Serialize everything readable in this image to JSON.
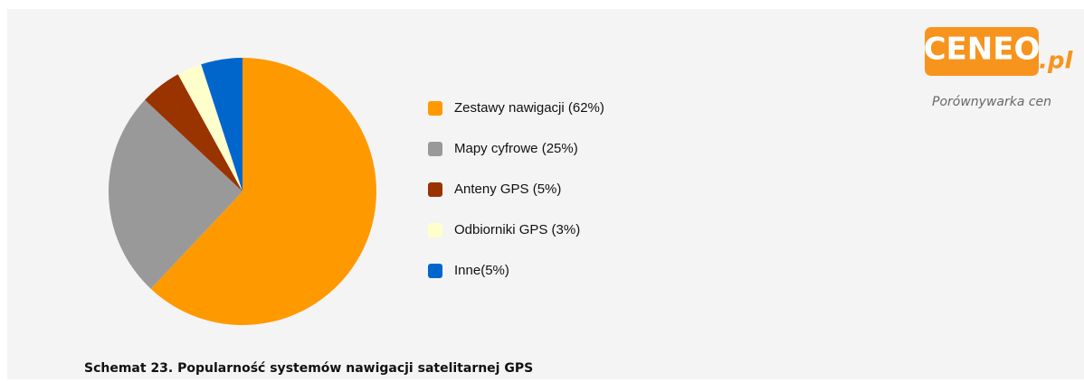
{
  "chart_data": {
    "type": "pie",
    "categories": [
      "Zestawy nawigacji (62%)",
      "Mapy cyfrowe (25%)",
      "Anteny GPS (5%)",
      "Odbiorniki GPS (3%)",
      "Inne(5%)"
    ],
    "values": [
      62,
      25,
      5,
      3,
      5
    ],
    "colors": [
      "#ff9900",
      "#999999",
      "#993300",
      "#ffffcc",
      "#0066cc"
    ],
    "caption": "Schemat 23. Popularność systemów nawigacji satelitarnej GPS"
  },
  "logo": {
    "name": "CENEO",
    "suffix": ".pl",
    "tagline": "Porównywarka cen"
  }
}
